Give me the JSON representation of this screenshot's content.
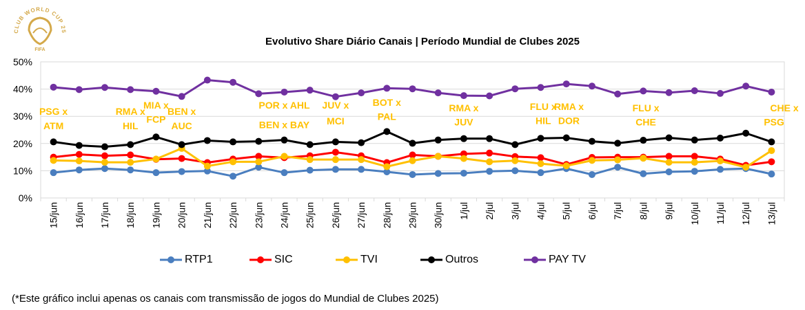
{
  "logo": {
    "arc_text": "CLUB WORLD CUP 25",
    "brand": "FIFA"
  },
  "chart_data": {
    "type": "line",
    "title": "Evolutivo Share Diário Canais | Período Mundial de Clubes 2025",
    "xlabel": "",
    "ylabel": "",
    "ylim": [
      0,
      0.5
    ],
    "yticks": [
      "0%",
      "10%",
      "20%",
      "30%",
      "40%",
      "50%"
    ],
    "grid": true,
    "legend_position": "bottom",
    "x": [
      "15/jun",
      "16/jun",
      "17/jun",
      "18/jun",
      "19/jun",
      "20/jun",
      "21/jun",
      "22/jun",
      "23/jun",
      "24/jun",
      "25/jun",
      "26/jun",
      "27/jun",
      "28/jun",
      "29/jun",
      "30/jun",
      "1/jul",
      "2/jul",
      "3/jul",
      "4/jul",
      "5/jul",
      "6/jul",
      "7/jul",
      "8/jul",
      "9/jul",
      "10/jul",
      "11/jul",
      "12/jul",
      "13/jul"
    ],
    "series": [
      {
        "name": "RTP1",
        "color": "#4a7ebf",
        "values": [
          0.093,
          0.103,
          0.108,
          0.103,
          0.093,
          0.097,
          0.099,
          0.08,
          0.113,
          0.093,
          0.102,
          0.105,
          0.105,
          0.096,
          0.086,
          0.09,
          0.091,
          0.098,
          0.1,
          0.093,
          0.108,
          0.086,
          0.113,
          0.089,
          0.096,
          0.098,
          0.105,
          0.108,
          0.088
        ]
      },
      {
        "name": "SIC",
        "color": "#ff0000",
        "values": [
          0.15,
          0.16,
          0.155,
          0.158,
          0.142,
          0.145,
          0.13,
          0.143,
          0.153,
          0.148,
          0.155,
          0.168,
          0.155,
          0.13,
          0.158,
          0.153,
          0.162,
          0.165,
          0.152,
          0.148,
          0.123,
          0.149,
          0.15,
          0.15,
          0.153,
          0.153,
          0.143,
          0.12,
          0.133
        ]
      },
      {
        "name": "TVI",
        "color": "#ffc000",
        "values": [
          0.138,
          0.136,
          0.131,
          0.131,
          0.143,
          0.182,
          0.117,
          0.133,
          0.133,
          0.153,
          0.141,
          0.141,
          0.141,
          0.115,
          0.137,
          0.153,
          0.145,
          0.133,
          0.137,
          0.126,
          0.118,
          0.138,
          0.14,
          0.146,
          0.131,
          0.131,
          0.136,
          0.113,
          0.174
        ]
      },
      {
        "name": "Outros",
        "color": "#000000",
        "values": [
          0.206,
          0.193,
          0.188,
          0.196,
          0.224,
          0.196,
          0.211,
          0.206,
          0.208,
          0.213,
          0.196,
          0.206,
          0.203,
          0.244,
          0.201,
          0.213,
          0.218,
          0.218,
          0.196,
          0.219,
          0.221,
          0.208,
          0.201,
          0.212,
          0.221,
          0.213,
          0.22,
          0.238,
          0.206
        ]
      },
      {
        "name": "PAY TV",
        "color": "#7030a0",
        "values": [
          0.407,
          0.398,
          0.406,
          0.398,
          0.392,
          0.373,
          0.433,
          0.425,
          0.383,
          0.389,
          0.396,
          0.372,
          0.386,
          0.403,
          0.401,
          0.386,
          0.376,
          0.375,
          0.401,
          0.406,
          0.419,
          0.411,
          0.382,
          0.393,
          0.387,
          0.394,
          0.384,
          0.411,
          0.389
        ]
      }
    ],
    "annotations": [
      {
        "text": "PSG x",
        "x_index": 0,
        "level": 0.305
      },
      {
        "text": "ATM",
        "x_index": 0,
        "level": 0.253
      },
      {
        "text": "RMA x",
        "x_index": 3,
        "level": 0.305
      },
      {
        "text": "HIL",
        "x_index": 3,
        "level": 0.253
      },
      {
        "text": "MIA x",
        "x_index": 4,
        "level": 0.328
      },
      {
        "text": "FCP",
        "x_index": 4,
        "level": 0.276
      },
      {
        "text": "BEN x",
        "x_index": 5,
        "level": 0.305
      },
      {
        "text": "AUC",
        "x_index": 5,
        "level": 0.253
      },
      {
        "text": "POR x AHL",
        "x_index": 9,
        "level": 0.328
      },
      {
        "text": "BEN x BAY",
        "x_index": 9,
        "level": 0.256
      },
      {
        "text": "JUV x",
        "x_index": 11,
        "level": 0.328
      },
      {
        "text": "MCI",
        "x_index": 11,
        "level": 0.27
      },
      {
        "text": "BOT x",
        "x_index": 13,
        "level": 0.339
      },
      {
        "text": "PAL",
        "x_index": 13,
        "level": 0.287
      },
      {
        "text": "RMA x",
        "x_index": 16,
        "level": 0.318
      },
      {
        "text": "JUV",
        "x_index": 16,
        "level": 0.266
      },
      {
        "text": "FLU x",
        "x_index": 19.1,
        "level": 0.323
      },
      {
        "text": "HIL",
        "x_index": 19.1,
        "level": 0.271
      },
      {
        "text": "RMA x",
        "x_index": 20.1,
        "level": 0.323
      },
      {
        "text": "DOR",
        "x_index": 20.1,
        "level": 0.271
      },
      {
        "text": "FLU x",
        "x_index": 23.1,
        "level": 0.318
      },
      {
        "text": "CHE",
        "x_index": 23.1,
        "level": 0.266
      },
      {
        "text": "CHE x",
        "x_index": 28.5,
        "level": 0.318
      },
      {
        "text": "PSG",
        "x_index": 28.1,
        "level": 0.266
      }
    ],
    "annotation_color": "#ffc000"
  },
  "footnote": "(*Este gráfico inclui apenas os canais com transmissão de jogos do Mundial de Clubes 2025)"
}
